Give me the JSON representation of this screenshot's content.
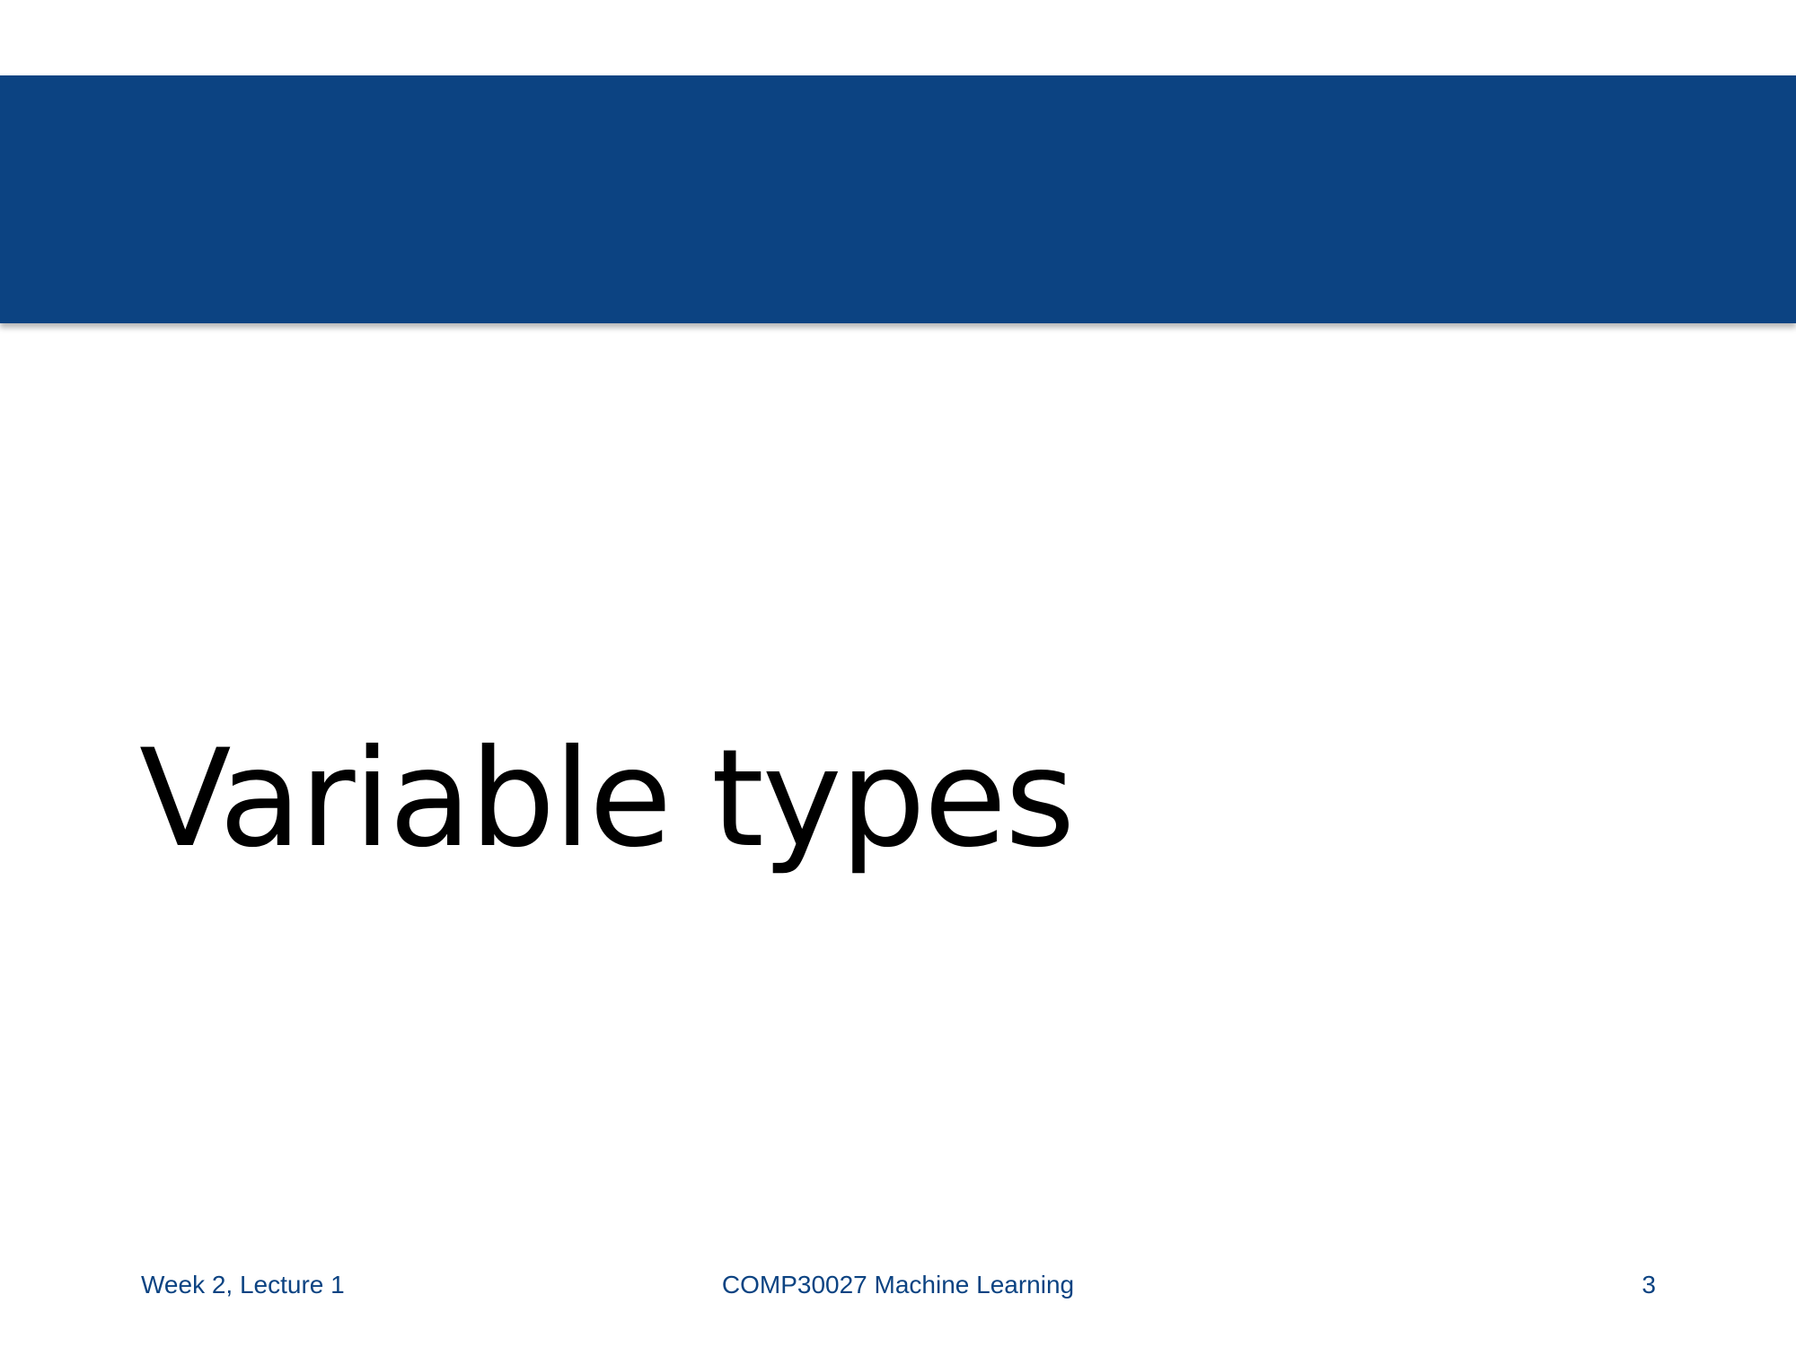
{
  "slide": {
    "title": "Variable types",
    "footer": {
      "left": "Week 2, Lecture 1",
      "center": "COMP30027 Machine Learning",
      "page_number": "3"
    }
  },
  "colors": {
    "header_band": "#0c4382",
    "footer_text": "#0c4382",
    "title_text": "#000000"
  }
}
